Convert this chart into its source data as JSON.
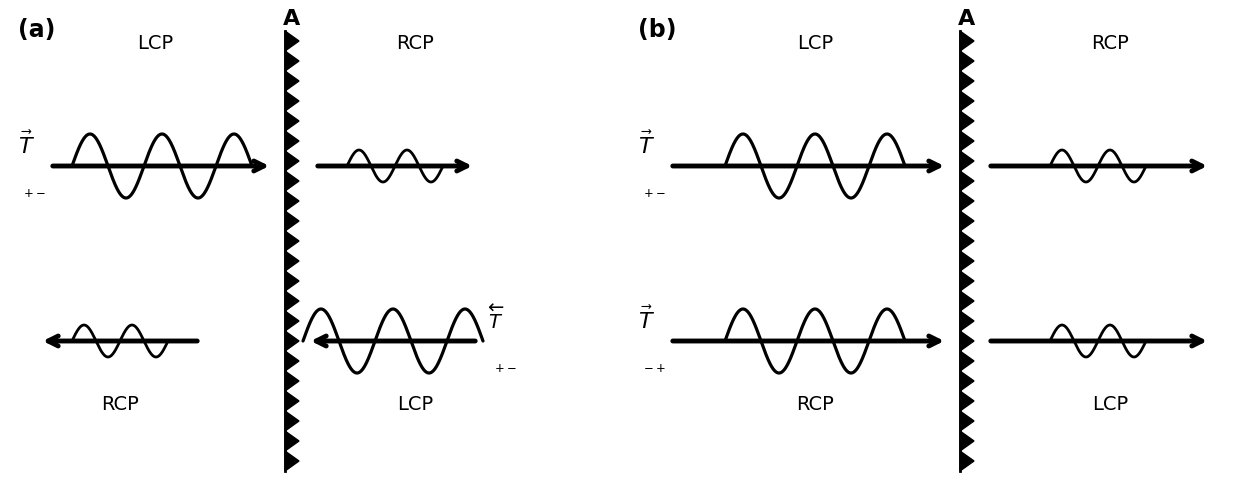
{
  "bg_color": "#ffffff",
  "panel_a_label": "(a)",
  "panel_b_label": "(b)",
  "barrier_label": "A",
  "lcp": "LCP",
  "rcp": "RCP",
  "T_pm": "$\\vec{T}_{+-}$",
  "T_pm_left": "$\\overleftarrow{T}_{+-}$",
  "T_mp": "$\\vec{T}_{-+}$"
}
